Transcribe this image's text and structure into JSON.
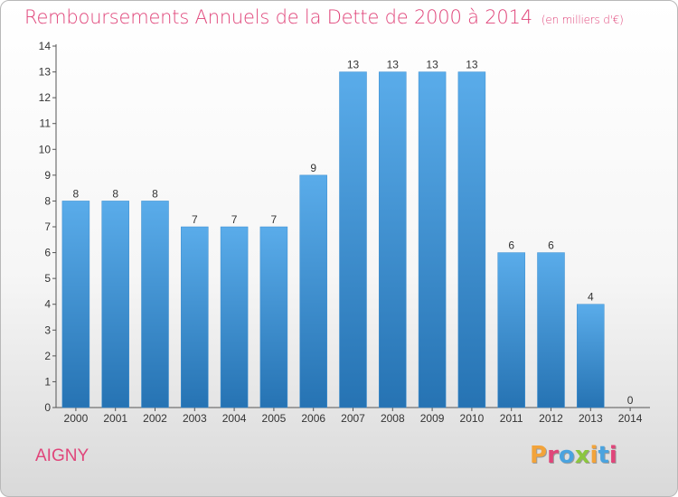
{
  "header": {
    "title": "Remboursements Annuels de la Dette de 2000 à 2014",
    "unit": "(en milliers d'€)"
  },
  "commune": "AIGNY",
  "logo": {
    "text": "Proxiti",
    "colors": [
      "#f2a33a",
      "#e0457a",
      "#4aa3df",
      "#8cc63f",
      "#f2a33a",
      "#4aa3df",
      "#e0457a"
    ]
  },
  "chart_data": {
    "type": "bar",
    "title": "Remboursements Annuels de la Dette de 2000 à 2014",
    "xlabel": "",
    "ylabel": "",
    "categories": [
      "2000",
      "2001",
      "2002",
      "2003",
      "2004",
      "2005",
      "2006",
      "2007",
      "2008",
      "2009",
      "2010",
      "2011",
      "2012",
      "2013",
      "2014"
    ],
    "values": [
      8,
      8,
      8,
      7,
      7,
      7,
      9,
      13,
      13,
      13,
      13,
      6,
      6,
      4,
      0
    ],
    "ylim": [
      0,
      14
    ],
    "yticks": [
      0,
      1,
      2,
      3,
      4,
      5,
      6,
      7,
      8,
      9,
      10,
      11,
      12,
      13,
      14
    ],
    "grid": false,
    "bar_color_top": "#5aacea",
    "bar_color_bottom": "#2673b3"
  }
}
